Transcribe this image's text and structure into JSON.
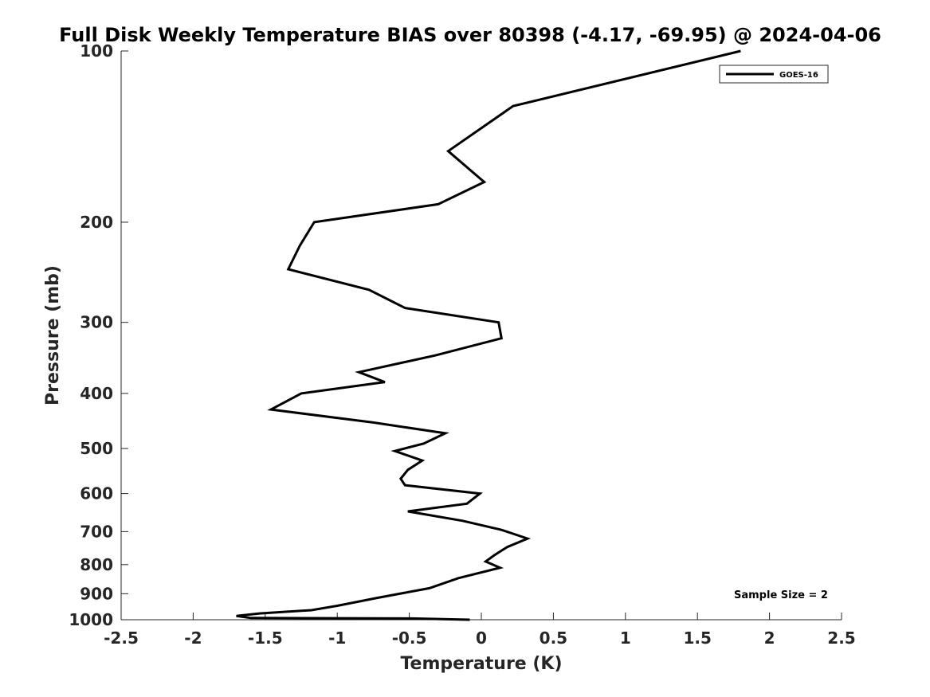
{
  "chart_data": {
    "type": "line",
    "title": "Full Disk Weekly Temperature BIAS over 80398 (-4.17, -69.95) @ 2024-04-06",
    "xlabel": "Temperature (K)",
    "ylabel": "Pressure (mb)",
    "xlim": [
      -2.5,
      2.5
    ],
    "ylim": [
      100,
      1000
    ],
    "yscale": "log",
    "y_reversed": true,
    "xticks": [
      -2.5,
      -2,
      -1.5,
      -1,
      -0.5,
      0,
      0.5,
      1,
      1.5,
      2,
      2.5
    ],
    "xtick_labels": [
      "-2.5",
      "-2",
      "-1.5",
      "-1",
      "-0.5",
      "0",
      "0.5",
      "1",
      "1.5",
      "2",
      "2.5"
    ],
    "yticks": [
      100,
      200,
      300,
      400,
      500,
      600,
      700,
      800,
      900,
      1000
    ],
    "ytick_labels": [
      "100",
      "200",
      "300",
      "400",
      "500",
      "600",
      "700",
      "800",
      "900",
      "1000"
    ],
    "grid": false,
    "legend": {
      "position": "top-right",
      "entries": [
        "GOES-16"
      ]
    },
    "annotations": [
      "Sample Size = 2"
    ],
    "series": [
      {
        "name": "GOES-16",
        "color": "#000000",
        "points": [
          [
            1.8,
            100
          ],
          [
            0.22,
            125
          ],
          [
            -0.23,
            150
          ],
          [
            0.02,
            170
          ],
          [
            -0.3,
            186
          ],
          [
            -1.16,
            200
          ],
          [
            -1.26,
            220
          ],
          [
            -1.34,
            242
          ],
          [
            -0.78,
            263
          ],
          [
            -0.53,
            283
          ],
          [
            0.12,
            300
          ],
          [
            0.14,
            320
          ],
          [
            -0.32,
            343
          ],
          [
            -0.85,
            367
          ],
          [
            -0.67,
            382
          ],
          [
            -1.25,
            400
          ],
          [
            -1.46,
            427
          ],
          [
            -0.75,
            450
          ],
          [
            -0.25,
            470
          ],
          [
            -0.4,
            490
          ],
          [
            -0.6,
            505
          ],
          [
            -0.41,
            525
          ],
          [
            -0.51,
            545
          ],
          [
            -0.56,
            565
          ],
          [
            -0.53,
            580
          ],
          [
            -0.01,
            600
          ],
          [
            -0.1,
            625
          ],
          [
            -0.51,
            645
          ],
          [
            -0.13,
            670
          ],
          [
            0.14,
            695
          ],
          [
            0.32,
            720
          ],
          [
            0.18,
            745
          ],
          [
            0.09,
            770
          ],
          [
            0.03,
            790
          ],
          [
            0.13,
            810
          ],
          [
            -0.16,
            845
          ],
          [
            -0.36,
            880
          ],
          [
            -0.72,
            915
          ],
          [
            -1.0,
            945
          ],
          [
            -1.18,
            962
          ],
          [
            -1.54,
            975
          ],
          [
            -1.7,
            985
          ],
          [
            -1.6,
            993
          ],
          [
            -0.48,
            995
          ],
          [
            -0.08,
            1000
          ]
        ]
      }
    ]
  }
}
